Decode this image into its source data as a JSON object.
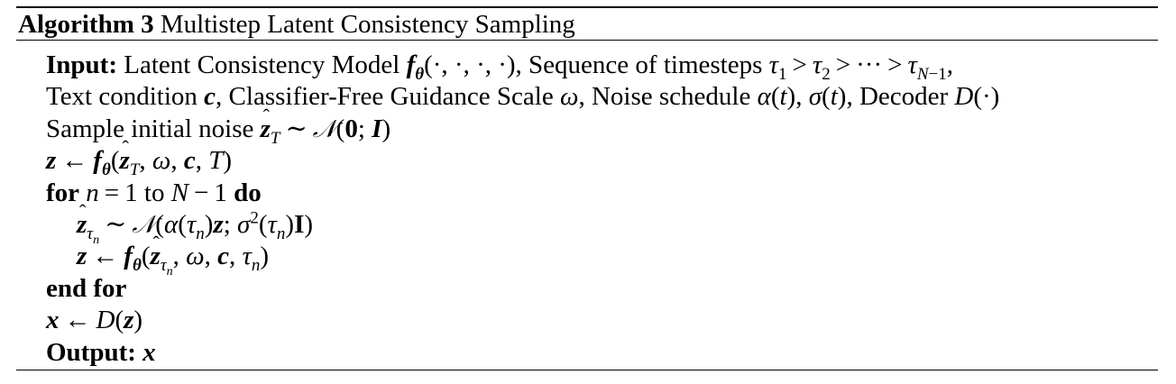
{
  "caption": {
    "label": "Algorithm 3",
    "title": "Multistep Latent Consistency Sampling"
  },
  "lines": {
    "input_kw": "Input:",
    "input_l1_text": " Latent Consistency Model ",
    "input_l1_args": "(·, ·, ·, ·), Sequence of timesteps ",
    "input_l2_a": "Text condition ",
    "input_l2_b": ", Classifier-Free Guidance Scale ",
    "input_l2_c": ", Noise schedule ",
    "input_l2_d": ", Decoder ",
    "sample_text": "Sample initial noise ",
    "for_kw": "for",
    "to_text": "to",
    "do_kw": "do",
    "endfor_kw": "end for",
    "output_kw": "Output:"
  }
}
